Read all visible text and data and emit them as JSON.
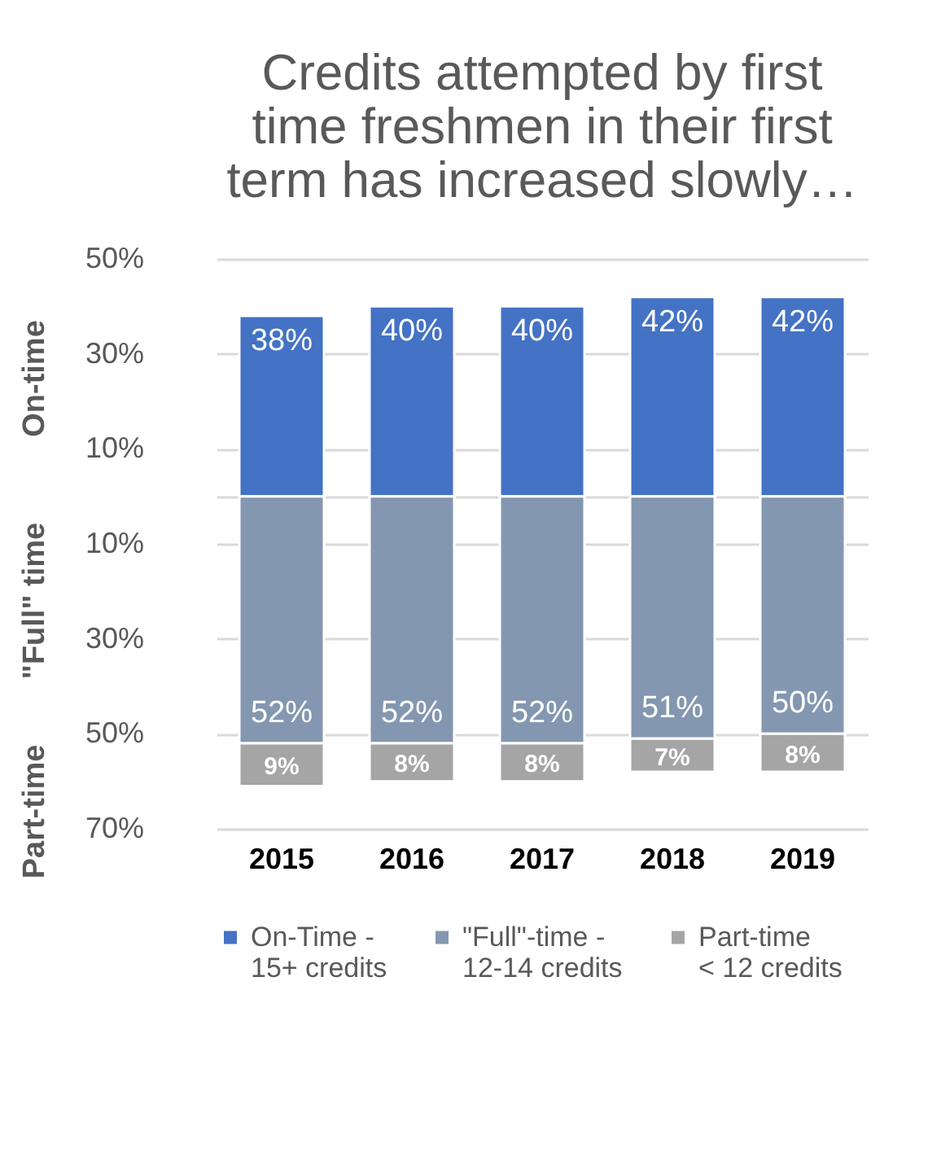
{
  "chart_data": {
    "type": "bar",
    "title": "Credits attempted by first time freshmen in their first term has increased slowly…",
    "categories": [
      "2015",
      "2016",
      "2017",
      "2018",
      "2019"
    ],
    "series": [
      {
        "name": "On-Time -\n15+ credits",
        "color": "#4472c4",
        "values": [
          38,
          40,
          40,
          42,
          42
        ],
        "base": [
          0,
          0,
          0,
          0,
          0
        ],
        "value_labels": [
          "38%",
          "40%",
          "40%",
          "42%",
          "42%"
        ]
      },
      {
        "name": "\"Full\"-time -\n12-14 credits",
        "color": "#8497b0",
        "values": [
          52,
          52,
          52,
          51,
          50
        ],
        "base": [
          -52,
          -52,
          -52,
          -51,
          -50
        ],
        "value_labels": [
          "52%",
          "52%",
          "52%",
          "51%",
          "50%"
        ]
      },
      {
        "name": "Part-time\n< 12 credits",
        "color": "#a5a5a5",
        "values": [
          9,
          8,
          8,
          7,
          8
        ],
        "base": [
          -61,
          -60,
          -60,
          -58,
          -58
        ],
        "value_labels": [
          "9%",
          "8%",
          "8%",
          "7%",
          "8%"
        ]
      }
    ],
    "annotations": [
      "On-time",
      "\"Full\" time",
      "Part-time"
    ],
    "ylim": [
      -70,
      50
    ],
    "yticks": [
      {
        "value": 50,
        "label": "50%"
      },
      {
        "value": 30,
        "label": "30%"
      },
      {
        "value": 10,
        "label": "10%"
      },
      {
        "value": 0,
        "label": null
      },
      {
        "value": -10,
        "label": "10%"
      },
      {
        "value": -30,
        "label": "30%"
      },
      {
        "value": -50,
        "label": "50%"
      },
      {
        "value": -70,
        "label": "70%"
      }
    ],
    "grid": "y",
    "legend": "bottom"
  }
}
